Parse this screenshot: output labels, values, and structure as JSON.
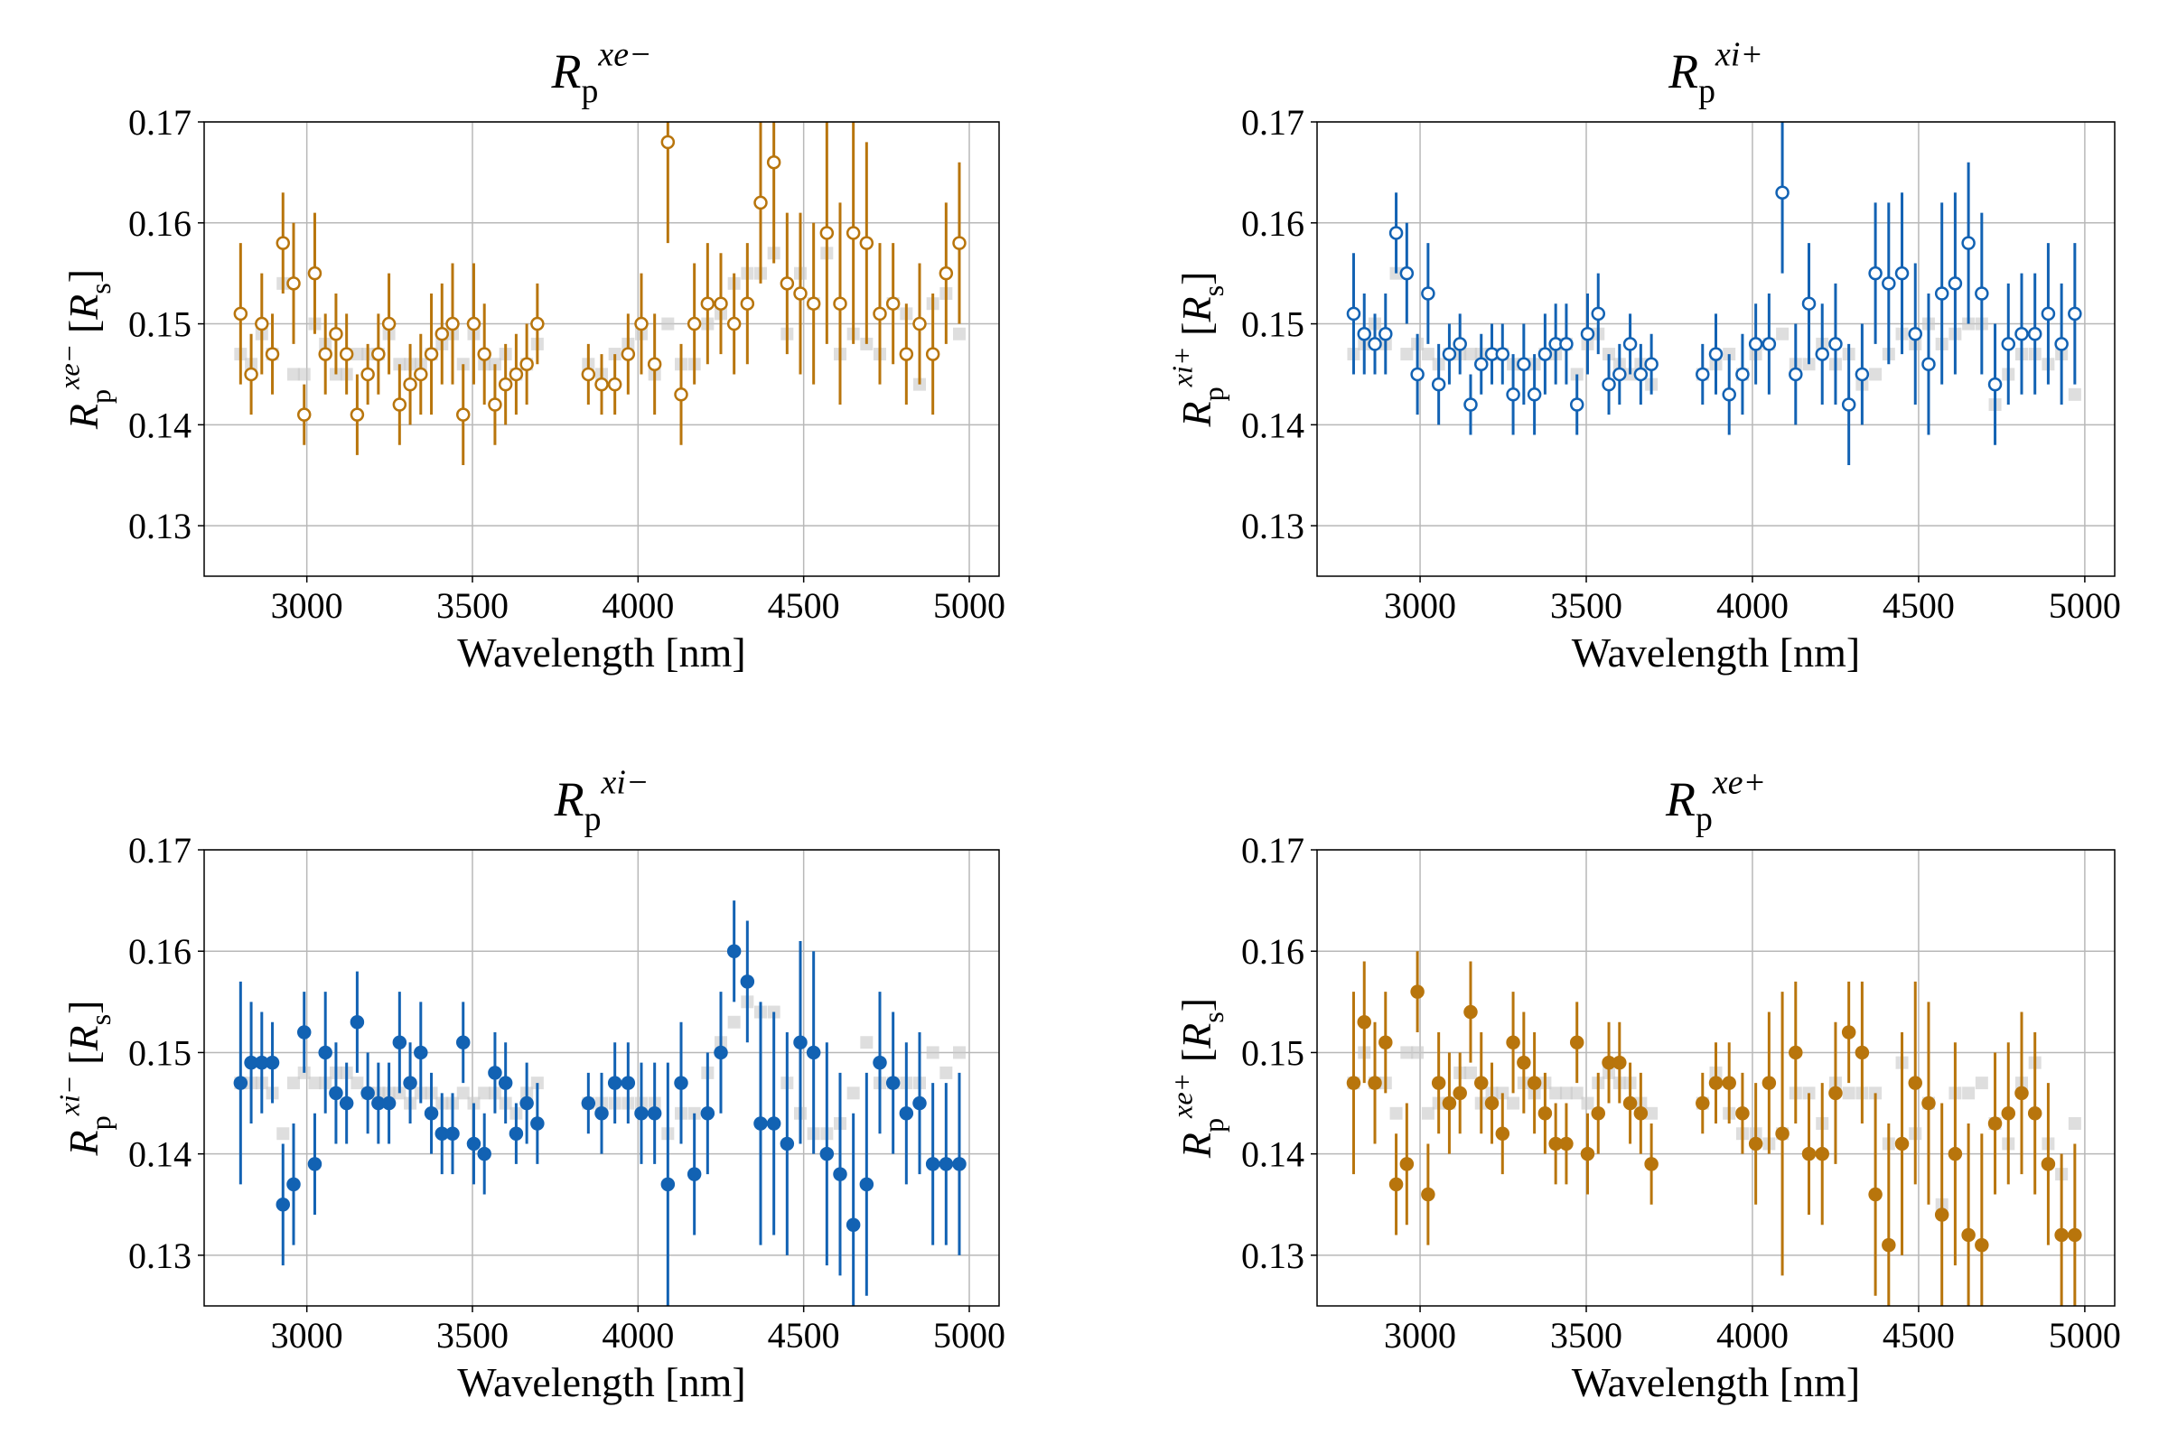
{
  "chart_data": [
    {
      "type": "scatter",
      "title": {
        "symbol": "R",
        "subscript": "p",
        "superscript": "xe−"
      },
      "xlabel": "Wavelength [nm]",
      "ylabel": {
        "symbol": "R",
        "subscript": "p",
        "superscript": "xe−",
        "unit": {
          "open": "[",
          "symbol": "R",
          "subscript": "s",
          "close": "]"
        }
      },
      "x": [
        2800,
        2832,
        2864,
        2896,
        2928,
        2960,
        2992,
        3024,
        3056,
        3088,
        3120,
        3152,
        3184,
        3216,
        3248,
        3280,
        3312,
        3344,
        3376,
        3408,
        3440,
        3472,
        3504,
        3536,
        3568,
        3600,
        3632,
        3664,
        3696,
        3850,
        3890,
        3930,
        3970,
        4010,
        4050,
        4090,
        4130,
        4170,
        4210,
        4250,
        4290,
        4330,
        4370,
        4410,
        4450,
        4490,
        4530,
        4570,
        4610,
        4650,
        4690,
        4730,
        4770,
        4810,
        4850,
        4890,
        4930,
        4970
      ],
      "values": [
        0.151,
        0.145,
        0.15,
        0.147,
        0.158,
        0.154,
        0.141,
        0.155,
        0.147,
        0.149,
        0.147,
        0.141,
        0.145,
        0.147,
        0.15,
        0.142,
        0.144,
        0.145,
        0.147,
        0.149,
        0.15,
        0.141,
        0.15,
        0.147,
        0.142,
        0.144,
        0.145,
        0.146,
        0.15,
        0.145,
        0.144,
        0.144,
        0.147,
        0.15,
        0.146,
        0.168,
        0.143,
        0.15,
        0.152,
        0.152,
        0.15,
        0.152,
        0.162,
        0.166,
        0.154,
        0.153,
        0.152,
        0.159,
        0.152,
        0.159,
        0.158,
        0.151,
        0.152,
        0.147,
        0.15,
        0.147,
        0.155,
        0.158
      ],
      "errors": [
        0.007,
        0.004,
        0.005,
        0.004,
        0.005,
        0.006,
        0.003,
        0.006,
        0.004,
        0.004,
        0.004,
        0.004,
        0.003,
        0.004,
        0.005,
        0.004,
        0.004,
        0.004,
        0.006,
        0.005,
        0.006,
        0.005,
        0.006,
        0.005,
        0.004,
        0.004,
        0.004,
        0.004,
        0.004,
        0.003,
        0.003,
        0.003,
        0.004,
        0.005,
        0.005,
        0.01,
        0.005,
        0.006,
        0.006,
        0.005,
        0.005,
        0.006,
        0.008,
        0.01,
        0.007,
        0.008,
        0.008,
        0.011,
        0.01,
        0.011,
        0.01,
        0.007,
        0.006,
        0.005,
        0.006,
        0.006,
        0.007,
        0.008
      ],
      "reference_values": [
        0.147,
        0.146,
        0.149,
        0.147,
        0.154,
        0.145,
        0.145,
        0.15,
        0.148,
        0.145,
        0.145,
        0.147,
        0.147,
        0.147,
        0.149,
        0.146,
        0.146,
        0.146,
        0.147,
        0.148,
        0.149,
        0.146,
        0.149,
        0.146,
        0.146,
        0.147,
        0.145,
        0.146,
        0.148,
        0.146,
        0.145,
        0.147,
        0.148,
        0.149,
        0.145,
        0.15,
        0.146,
        0.146,
        0.15,
        0.151,
        0.154,
        0.155,
        0.155,
        0.157,
        0.149,
        0.155,
        0.152,
        0.157,
        0.147,
        0.149,
        0.148,
        0.147,
        0.152,
        0.151,
        0.144,
        0.152,
        0.153,
        0.149
      ],
      "color": "#b8750c",
      "marker": "open",
      "reference_color": "#c8c8c8",
      "xlim": [
        2690,
        5090
      ],
      "ylim": [
        0.125,
        0.17
      ],
      "xticks": [
        3000,
        3500,
        4000,
        4500,
        5000
      ],
      "yticks": [
        0.13,
        0.14,
        0.15,
        0.16,
        0.17
      ],
      "grid": true
    },
    {
      "type": "scatter",
      "title": {
        "symbol": "R",
        "subscript": "p",
        "superscript": "xi+"
      },
      "xlabel": "Wavelength [nm]",
      "ylabel": {
        "symbol": "R",
        "subscript": "p",
        "superscript": "xi+",
        "unit": {
          "open": "[",
          "symbol": "R",
          "subscript": "s",
          "close": "]"
        }
      },
      "x": [
        2800,
        2832,
        2864,
        2896,
        2928,
        2960,
        2992,
        3024,
        3056,
        3088,
        3120,
        3152,
        3184,
        3216,
        3248,
        3280,
        3312,
        3344,
        3376,
        3408,
        3440,
        3472,
        3504,
        3536,
        3568,
        3600,
        3632,
        3664,
        3696,
        3850,
        3890,
        3930,
        3970,
        4010,
        4050,
        4090,
        4130,
        4170,
        4210,
        4250,
        4290,
        4330,
        4370,
        4410,
        4450,
        4490,
        4530,
        4570,
        4610,
        4650,
        4690,
        4730,
        4770,
        4810,
        4850,
        4890,
        4930,
        4970
      ],
      "values": [
        0.151,
        0.149,
        0.148,
        0.149,
        0.159,
        0.155,
        0.145,
        0.153,
        0.144,
        0.147,
        0.148,
        0.142,
        0.146,
        0.147,
        0.147,
        0.143,
        0.146,
        0.143,
        0.147,
        0.148,
        0.148,
        0.142,
        0.149,
        0.151,
        0.144,
        0.145,
        0.148,
        0.145,
        0.146,
        0.145,
        0.147,
        0.143,
        0.145,
        0.148,
        0.148,
        0.163,
        0.145,
        0.152,
        0.147,
        0.148,
        0.142,
        0.145,
        0.155,
        0.154,
        0.155,
        0.149,
        0.146,
        0.153,
        0.154,
        0.158,
        0.153,
        0.144,
        0.148,
        0.149,
        0.149,
        0.151,
        0.148,
        0.151
      ],
      "errors": [
        0.006,
        0.004,
        0.003,
        0.004,
        0.004,
        0.005,
        0.004,
        0.005,
        0.004,
        0.003,
        0.003,
        0.003,
        0.003,
        0.003,
        0.003,
        0.004,
        0.004,
        0.004,
        0.004,
        0.004,
        0.004,
        0.003,
        0.004,
        0.004,
        0.003,
        0.003,
        0.003,
        0.003,
        0.003,
        0.003,
        0.004,
        0.004,
        0.004,
        0.004,
        0.005,
        0.008,
        0.005,
        0.006,
        0.005,
        0.006,
        0.006,
        0.005,
        0.007,
        0.008,
        0.008,
        0.007,
        0.007,
        0.009,
        0.009,
        0.008,
        0.008,
        0.006,
        0.006,
        0.006,
        0.006,
        0.007,
        0.006,
        0.007
      ],
      "reference_values": [
        0.147,
        0.148,
        0.15,
        0.148,
        0.155,
        0.147,
        0.148,
        0.147,
        0.146,
        0.147,
        0.147,
        0.147,
        0.147,
        0.147,
        0.147,
        0.146,
        0.146,
        0.146,
        0.147,
        0.147,
        0.148,
        0.145,
        0.148,
        0.149,
        0.147,
        0.146,
        0.145,
        0.146,
        0.144,
        0.145,
        0.146,
        0.147,
        0.145,
        0.147,
        0.148,
        0.149,
        0.146,
        0.146,
        0.148,
        0.146,
        0.147,
        0.144,
        0.145,
        0.147,
        0.149,
        0.148,
        0.15,
        0.148,
        0.149,
        0.15,
        0.15,
        0.142,
        0.145,
        0.147,
        0.147,
        0.146,
        0.147,
        0.143
      ],
      "color": "#1262b3",
      "marker": "open",
      "reference_color": "#c8c8c8",
      "xlim": [
        2690,
        5090
      ],
      "ylim": [
        0.125,
        0.17
      ],
      "xticks": [
        3000,
        3500,
        4000,
        4500,
        5000
      ],
      "yticks": [
        0.13,
        0.14,
        0.15,
        0.16,
        0.17
      ],
      "grid": true
    },
    {
      "type": "scatter",
      "title": {
        "symbol": "R",
        "subscript": "p",
        "superscript": "xi−"
      },
      "xlabel": "Wavelength [nm]",
      "ylabel": {
        "symbol": "R",
        "subscript": "p",
        "superscript": "xi−",
        "unit": {
          "open": "[",
          "symbol": "R",
          "subscript": "s",
          "close": "]"
        }
      },
      "x": [
        2800,
        2832,
        2864,
        2896,
        2928,
        2960,
        2992,
        3024,
        3056,
        3088,
        3120,
        3152,
        3184,
        3216,
        3248,
        3280,
        3312,
        3344,
        3376,
        3408,
        3440,
        3472,
        3504,
        3536,
        3568,
        3600,
        3632,
        3664,
        3696,
        3850,
        3890,
        3930,
        3970,
        4010,
        4050,
        4090,
        4130,
        4170,
        4210,
        4250,
        4290,
        4330,
        4370,
        4410,
        4450,
        4490,
        4530,
        4570,
        4610,
        4650,
        4690,
        4730,
        4770,
        4810,
        4850,
        4890,
        4930,
        4970
      ],
      "values": [
        0.147,
        0.149,
        0.149,
        0.149,
        0.135,
        0.137,
        0.152,
        0.139,
        0.15,
        0.146,
        0.145,
        0.153,
        0.146,
        0.145,
        0.145,
        0.151,
        0.147,
        0.15,
        0.144,
        0.142,
        0.142,
        0.151,
        0.141,
        0.14,
        0.148,
        0.147,
        0.142,
        0.145,
        0.143,
        0.145,
        0.144,
        0.147,
        0.147,
        0.144,
        0.144,
        0.137,
        0.147,
        0.138,
        0.144,
        0.15,
        0.16,
        0.157,
        0.143,
        0.143,
        0.141,
        0.151,
        0.15,
        0.14,
        0.138,
        0.133,
        0.137,
        0.149,
        0.147,
        0.144,
        0.145,
        0.139,
        0.139,
        0.139
      ],
      "errors": [
        0.01,
        0.006,
        0.005,
        0.004,
        0.006,
        0.006,
        0.004,
        0.005,
        0.006,
        0.005,
        0.004,
        0.005,
        0.004,
        0.004,
        0.004,
        0.005,
        0.004,
        0.005,
        0.004,
        0.004,
        0.004,
        0.004,
        0.004,
        0.004,
        0.004,
        0.004,
        0.003,
        0.004,
        0.004,
        0.003,
        0.004,
        0.004,
        0.004,
        0.005,
        0.005,
        0.012,
        0.006,
        0.006,
        0.006,
        0.006,
        0.005,
        0.006,
        0.012,
        0.011,
        0.011,
        0.01,
        0.01,
        0.011,
        0.01,
        0.011,
        0.011,
        0.007,
        0.007,
        0.007,
        0.007,
        0.008,
        0.008,
        0.009
      ],
      "reference_values": [
        0.147,
        0.147,
        0.147,
        0.146,
        0.142,
        0.147,
        0.148,
        0.147,
        0.147,
        0.148,
        0.148,
        0.147,
        0.146,
        0.146,
        0.146,
        0.146,
        0.145,
        0.146,
        0.146,
        0.145,
        0.145,
        0.146,
        0.145,
        0.146,
        0.146,
        0.145,
        0.144,
        0.146,
        0.147,
        0.145,
        0.145,
        0.145,
        0.145,
        0.145,
        0.145,
        0.142,
        0.144,
        0.144,
        0.148,
        0.151,
        0.153,
        0.155,
        0.154,
        0.154,
        0.147,
        0.144,
        0.142,
        0.142,
        0.143,
        0.146,
        0.151,
        0.147,
        0.147,
        0.147,
        0.147,
        0.15,
        0.148,
        0.15
      ],
      "color": "#1262b3",
      "marker": "filled",
      "reference_color": "#c8c8c8",
      "xlim": [
        2690,
        5090
      ],
      "ylim": [
        0.125,
        0.17
      ],
      "xticks": [
        3000,
        3500,
        4000,
        4500,
        5000
      ],
      "yticks": [
        0.13,
        0.14,
        0.15,
        0.16,
        0.17
      ],
      "grid": true
    },
    {
      "type": "scatter",
      "title": {
        "symbol": "R",
        "subscript": "p",
        "superscript": "xe+"
      },
      "xlabel": "Wavelength [nm]",
      "ylabel": {
        "symbol": "R",
        "subscript": "p",
        "superscript": "xe+",
        "unit": {
          "open": "[",
          "symbol": "R",
          "subscript": "s",
          "close": "]"
        }
      },
      "x": [
        2800,
        2832,
        2864,
        2896,
        2928,
        2960,
        2992,
        3024,
        3056,
        3088,
        3120,
        3152,
        3184,
        3216,
        3248,
        3280,
        3312,
        3344,
        3376,
        3408,
        3440,
        3472,
        3504,
        3536,
        3568,
        3600,
        3632,
        3664,
        3696,
        3850,
        3890,
        3930,
        3970,
        4010,
        4050,
        4090,
        4130,
        4170,
        4210,
        4250,
        4290,
        4330,
        4370,
        4410,
        4450,
        4490,
        4530,
        4570,
        4610,
        4650,
        4690,
        4730,
        4770,
        4810,
        4850,
        4890,
        4930,
        4970
      ],
      "values": [
        0.147,
        0.153,
        0.147,
        0.151,
        0.137,
        0.139,
        0.156,
        0.136,
        0.147,
        0.145,
        0.146,
        0.154,
        0.147,
        0.145,
        0.142,
        0.151,
        0.149,
        0.147,
        0.144,
        0.141,
        0.141,
        0.151,
        0.14,
        0.144,
        0.149,
        0.149,
        0.145,
        0.144,
        0.139,
        0.145,
        0.147,
        0.147,
        0.144,
        0.141,
        0.147,
        0.142,
        0.15,
        0.14,
        0.14,
        0.146,
        0.152,
        0.15,
        0.136,
        0.131,
        0.141,
        0.147,
        0.145,
        0.134,
        0.14,
        0.132,
        0.131,
        0.143,
        0.144,
        0.146,
        0.144,
        0.139,
        0.132,
        0.132
      ],
      "errors": [
        0.009,
        0.006,
        0.006,
        0.005,
        0.005,
        0.006,
        0.004,
        0.005,
        0.005,
        0.005,
        0.004,
        0.005,
        0.005,
        0.004,
        0.004,
        0.005,
        0.005,
        0.005,
        0.004,
        0.004,
        0.004,
        0.004,
        0.004,
        0.004,
        0.004,
        0.004,
        0.004,
        0.004,
        0.004,
        0.003,
        0.004,
        0.004,
        0.004,
        0.006,
        0.007,
        0.014,
        0.007,
        0.006,
        0.007,
        0.007,
        0.005,
        0.007,
        0.01,
        0.012,
        0.011,
        0.01,
        0.01,
        0.011,
        0.011,
        0.011,
        0.011,
        0.007,
        0.007,
        0.008,
        0.008,
        0.008,
        0.008,
        0.009
      ],
      "reference_values": [
        0.147,
        0.15,
        0.147,
        0.147,
        0.144,
        0.15,
        0.15,
        0.144,
        0.145,
        0.145,
        0.148,
        0.148,
        0.145,
        0.146,
        0.146,
        0.145,
        0.147,
        0.146,
        0.147,
        0.146,
        0.146,
        0.146,
        0.145,
        0.147,
        0.148,
        0.147,
        0.147,
        0.145,
        0.144,
        0.145,
        0.148,
        0.144,
        0.142,
        0.142,
        0.141,
        0.142,
        0.146,
        0.146,
        0.143,
        0.147,
        0.146,
        0.146,
        0.146,
        0.141,
        0.149,
        0.142,
        0.145,
        0.135,
        0.146,
        0.146,
        0.147,
        0.143,
        0.141,
        0.147,
        0.149,
        0.141,
        0.138,
        0.143
      ],
      "color": "#b8750c",
      "marker": "filled",
      "reference_color": "#c8c8c8",
      "xlim": [
        2690,
        5090
      ],
      "ylim": [
        0.125,
        0.17
      ],
      "xticks": [
        3000,
        3500,
        4000,
        4500,
        5000
      ],
      "yticks": [
        0.13,
        0.14,
        0.15,
        0.16,
        0.17
      ],
      "grid": true
    }
  ]
}
